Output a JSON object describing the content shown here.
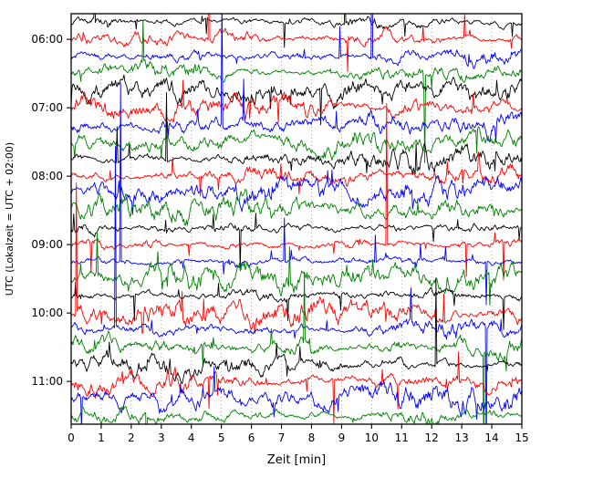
{
  "figure": {
    "background": "#ffffff"
  },
  "chart_data": {
    "type": "line",
    "subtype": "helicorder-dayplot-seismogram",
    "title": "",
    "xlabel": "Zeit  [min]",
    "ylabel": "UTC (Lokalzeit = UTC + 02:00)",
    "x_range": [
      0,
      15
    ],
    "x_ticks": [
      0,
      1,
      2,
      3,
      4,
      5,
      6,
      7,
      8,
      9,
      10,
      11,
      12,
      13,
      14,
      15
    ],
    "minutes_per_row": 15,
    "grid": {
      "vertical_dotted": true,
      "color": "#888888"
    },
    "legend": "none",
    "n_rows": 24,
    "colors_cycle": [
      "#000000",
      "#ff0000",
      "#0000ff",
      "#008000"
    ],
    "rows": [
      {
        "color": "#000000",
        "label": ""
      },
      {
        "color": "#ff0000",
        "label": "06:00"
      },
      {
        "color": "#0000ff",
        "label": ""
      },
      {
        "color": "#008000",
        "label": ""
      },
      {
        "color": "#000000",
        "label": ""
      },
      {
        "color": "#ff0000",
        "label": "07:00"
      },
      {
        "color": "#0000ff",
        "label": ""
      },
      {
        "color": "#008000",
        "label": ""
      },
      {
        "color": "#000000",
        "label": ""
      },
      {
        "color": "#ff0000",
        "label": "08:00"
      },
      {
        "color": "#0000ff",
        "label": ""
      },
      {
        "color": "#008000",
        "label": ""
      },
      {
        "color": "#000000",
        "label": ""
      },
      {
        "color": "#ff0000",
        "label": "09:00"
      },
      {
        "color": "#0000ff",
        "label": ""
      },
      {
        "color": "#008000",
        "label": ""
      },
      {
        "color": "#000000",
        "label": ""
      },
      {
        "color": "#ff0000",
        "label": "10:00"
      },
      {
        "color": "#0000ff",
        "label": ""
      },
      {
        "color": "#008000",
        "label": ""
      },
      {
        "color": "#000000",
        "label": ""
      },
      {
        "color": "#ff0000",
        "label": "11:00"
      },
      {
        "color": "#0000ff",
        "label": ""
      },
      {
        "color": "#008000",
        "label": ""
      }
    ]
  }
}
